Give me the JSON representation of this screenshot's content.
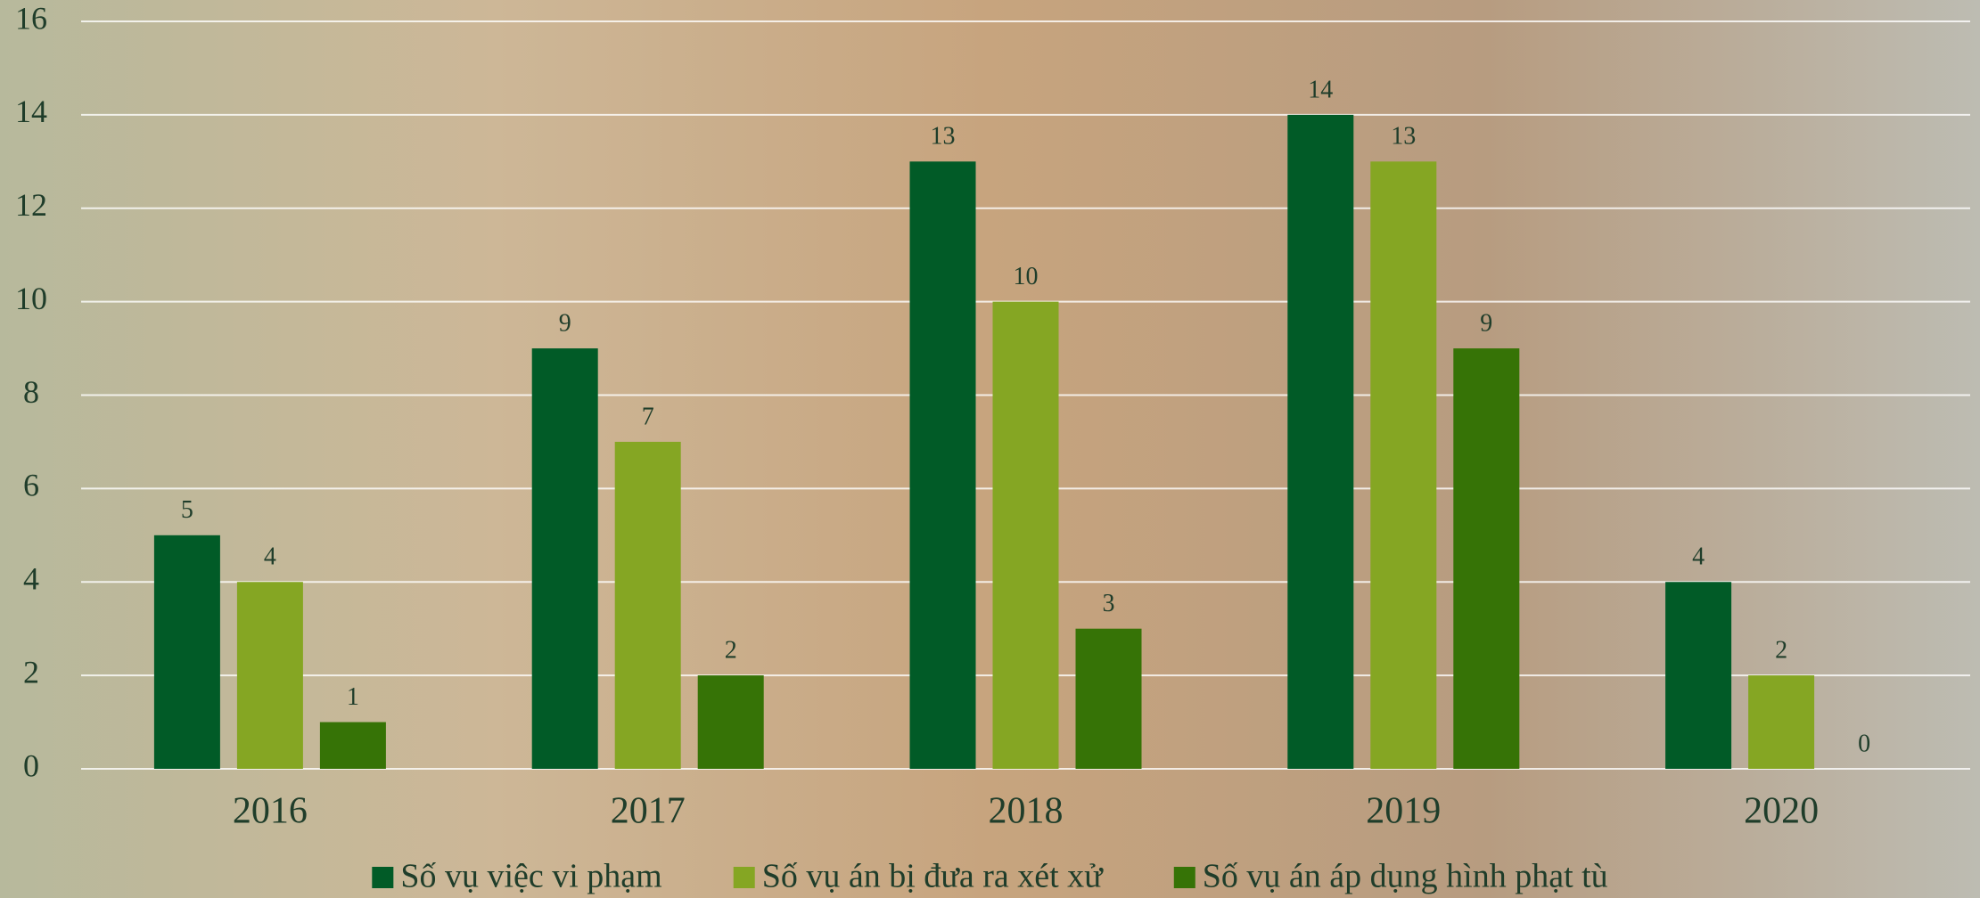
{
  "chart_data": {
    "type": "bar",
    "categories": [
      "2016",
      "2017",
      "2018",
      "2019",
      "2020"
    ],
    "series": [
      {
        "name": "Số vụ việc vi phạm",
        "color": "#015b27",
        "values": [
          5,
          9,
          13,
          14,
          4
        ]
      },
      {
        "name": "Số vụ án bị đưa ra xét xử",
        "color": "#85a623",
        "values": [
          4,
          7,
          10,
          13,
          2
        ]
      },
      {
        "name": "Số vụ án áp dụng hình phạt tù",
        "color": "#367306",
        "values": [
          1,
          2,
          3,
          9,
          0
        ]
      }
    ],
    "ylim": [
      0,
      16
    ],
    "yticks": [
      0,
      2,
      4,
      6,
      8,
      10,
      12,
      14,
      16
    ],
    "grid": true,
    "legend": "bottom"
  }
}
